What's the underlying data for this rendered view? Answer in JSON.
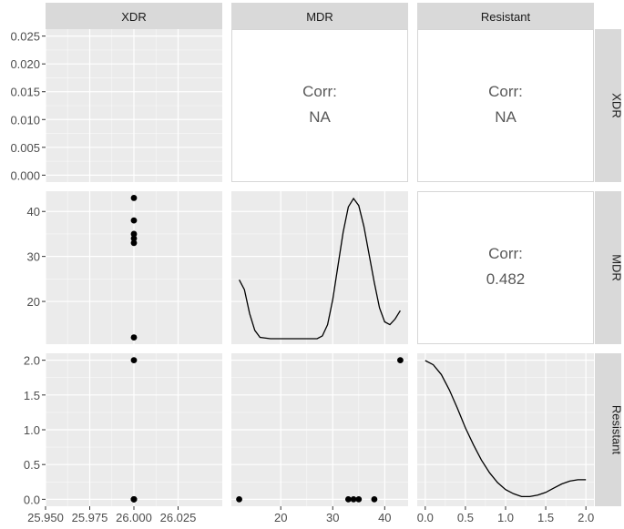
{
  "chart_data": {
    "type": "scatter",
    "variables": [
      "XDR",
      "MDR",
      "Resistant"
    ],
    "corr_label": "Corr:",
    "correlations": [
      {
        "row": "XDR",
        "col": "MDR",
        "value": "NA"
      },
      {
        "row": "XDR",
        "col": "Resistant",
        "value": "NA"
      },
      {
        "row": "MDR",
        "col": "Resistant",
        "value": "0.482"
      }
    ],
    "observations": [
      {
        "XDR": 26.0,
        "MDR": 43,
        "Resistant": 2
      },
      {
        "XDR": 26.0,
        "MDR": 38,
        "Resistant": 0
      },
      {
        "XDR": 26.0,
        "MDR": 35,
        "Resistant": 0
      },
      {
        "XDR": 26.0,
        "MDR": 34,
        "Resistant": 0
      },
      {
        "XDR": 26.0,
        "MDR": 33,
        "Resistant": 0
      },
      {
        "XDR": 26.0,
        "MDR": 12,
        "Resistant": 0
      }
    ],
    "densities": {
      "MDR": {
        "x": [
          12,
          13,
          14,
          15,
          16,
          18,
          20,
          24,
          27,
          28,
          29,
          30,
          31,
          32,
          33,
          34,
          35,
          36,
          37,
          38,
          39,
          40,
          41,
          42,
          43
        ],
        "y": [
          0.42,
          0.35,
          0.18,
          0.06,
          0.01,
          0.0,
          0.0,
          0.0,
          0.0,
          0.02,
          0.1,
          0.28,
          0.52,
          0.76,
          0.94,
          1.0,
          0.95,
          0.8,
          0.6,
          0.4,
          0.22,
          0.12,
          0.1,
          0.14,
          0.2
        ]
      },
      "Resistant": {
        "x": [
          0.0,
          0.1,
          0.2,
          0.3,
          0.4,
          0.5,
          0.6,
          0.7,
          0.8,
          0.9,
          1.0,
          1.1,
          1.2,
          1.3,
          1.4,
          1.5,
          1.6,
          1.7,
          1.8,
          1.9,
          2.0
        ],
        "y": [
          1.0,
          0.97,
          0.9,
          0.79,
          0.66,
          0.52,
          0.4,
          0.29,
          0.2,
          0.13,
          0.08,
          0.05,
          0.03,
          0.03,
          0.04,
          0.06,
          0.09,
          0.12,
          0.14,
          0.15,
          0.15
        ]
      }
    },
    "axes": {
      "x": {
        "XDR": {
          "range": [
            25.95,
            26.05
          ],
          "ticks": [
            25.95,
            25.975,
            26.0,
            26.025
          ],
          "tick_labels": [
            "25.950",
            "25.975",
            "26.000",
            "26.025"
          ]
        },
        "MDR": {
          "range": [
            10.5,
            44.5
          ],
          "ticks": [
            20,
            30,
            40
          ],
          "tick_labels": [
            "20",
            "30",
            "40"
          ]
        },
        "Resistant": {
          "range": [
            -0.1,
            2.1
          ],
          "ticks": [
            0.0,
            0.5,
            1.0,
            1.5,
            2.0
          ],
          "tick_labels": [
            "0.0",
            "0.5",
            "1.0",
            "1.5",
            "2.0"
          ]
        }
      },
      "y": {
        "XDR": {
          "range": [
            -0.00125,
            0.02625
          ],
          "ticks": [
            0.0,
            0.005,
            0.01,
            0.015,
            0.02,
            0.025
          ],
          "tick_labels": [
            "0.000",
            "0.005",
            "0.010",
            "0.015",
            "0.020",
            "0.025"
          ]
        },
        "MDR": {
          "range": [
            10.5,
            44.5
          ],
          "ticks": [
            20,
            30,
            40
          ],
          "tick_labels": [
            "20",
            "30",
            "40"
          ]
        },
        "Resistant": {
          "range": [
            -0.1,
            2.1
          ],
          "ticks": [
            0.0,
            0.5,
            1.0,
            1.5,
            2.0
          ],
          "tick_labels": [
            "0.0",
            "0.5",
            "1.0",
            "1.5",
            "2.0"
          ]
        }
      }
    },
    "grid": true,
    "colors": {
      "panel_bg": "#ebebeb",
      "grid_major": "#ffffff",
      "strip_bg": "#d9d9d9",
      "point": "#000000",
      "line": "#000000"
    }
  }
}
